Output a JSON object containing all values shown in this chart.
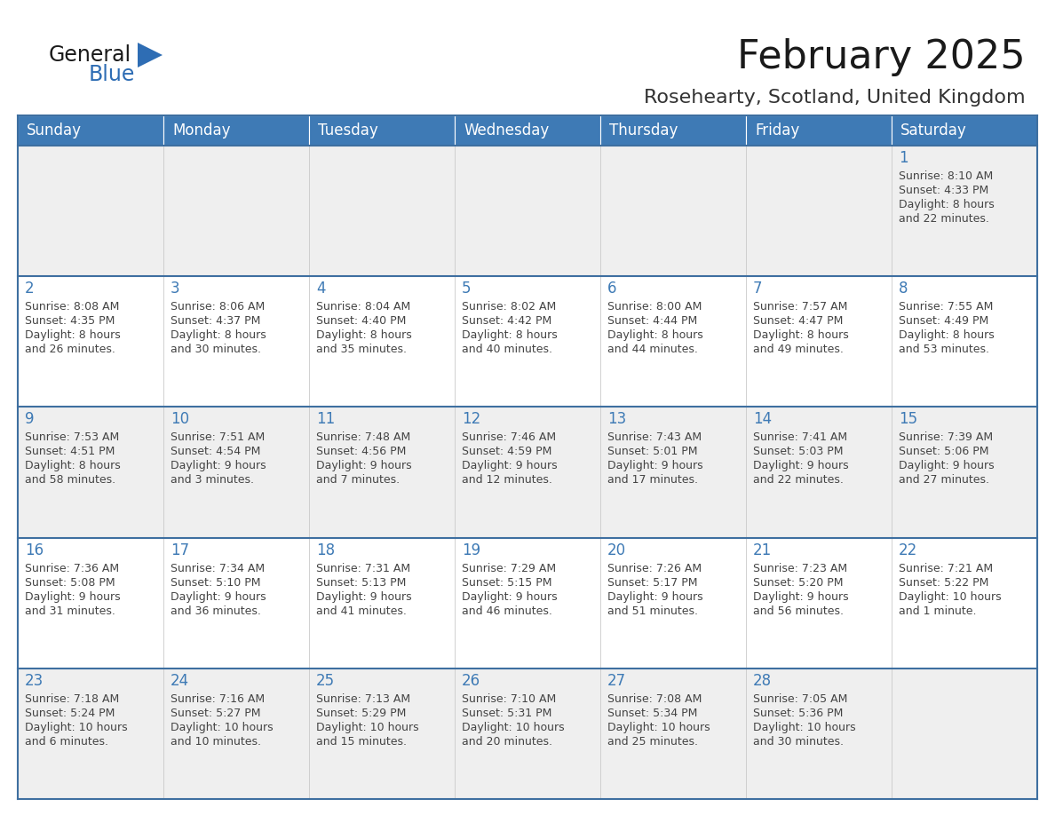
{
  "title": "February 2025",
  "subtitle": "Rosehearty, Scotland, United Kingdom",
  "days_of_week": [
    "Sunday",
    "Monday",
    "Tuesday",
    "Wednesday",
    "Thursday",
    "Friday",
    "Saturday"
  ],
  "header_bg": "#3e7ab5",
  "header_text": "#ffffff",
  "row_bg": [
    "#efefef",
    "#ffffff",
    "#efefef",
    "#ffffff",
    "#efefef"
  ],
  "border_color": "#3e6fa0",
  "day_num_color": "#3e7ab5",
  "cell_text_color": "#444444",
  "title_color": "#1a1a1a",
  "subtitle_color": "#333333",
  "logo_general_color": "#1a1a1a",
  "logo_blue_color": "#2e6db4",
  "calendar_data": [
    [
      {
        "day": null,
        "lines": []
      },
      {
        "day": null,
        "lines": []
      },
      {
        "day": null,
        "lines": []
      },
      {
        "day": null,
        "lines": []
      },
      {
        "day": null,
        "lines": []
      },
      {
        "day": null,
        "lines": []
      },
      {
        "day": 1,
        "lines": [
          "Sunrise: 8:10 AM",
          "Sunset: 4:33 PM",
          "Daylight: 8 hours",
          "and 22 minutes."
        ]
      }
    ],
    [
      {
        "day": 2,
        "lines": [
          "Sunrise: 8:08 AM",
          "Sunset: 4:35 PM",
          "Daylight: 8 hours",
          "and 26 minutes."
        ]
      },
      {
        "day": 3,
        "lines": [
          "Sunrise: 8:06 AM",
          "Sunset: 4:37 PM",
          "Daylight: 8 hours",
          "and 30 minutes."
        ]
      },
      {
        "day": 4,
        "lines": [
          "Sunrise: 8:04 AM",
          "Sunset: 4:40 PM",
          "Daylight: 8 hours",
          "and 35 minutes."
        ]
      },
      {
        "day": 5,
        "lines": [
          "Sunrise: 8:02 AM",
          "Sunset: 4:42 PM",
          "Daylight: 8 hours",
          "and 40 minutes."
        ]
      },
      {
        "day": 6,
        "lines": [
          "Sunrise: 8:00 AM",
          "Sunset: 4:44 PM",
          "Daylight: 8 hours",
          "and 44 minutes."
        ]
      },
      {
        "day": 7,
        "lines": [
          "Sunrise: 7:57 AM",
          "Sunset: 4:47 PM",
          "Daylight: 8 hours",
          "and 49 minutes."
        ]
      },
      {
        "day": 8,
        "lines": [
          "Sunrise: 7:55 AM",
          "Sunset: 4:49 PM",
          "Daylight: 8 hours",
          "and 53 minutes."
        ]
      }
    ],
    [
      {
        "day": 9,
        "lines": [
          "Sunrise: 7:53 AM",
          "Sunset: 4:51 PM",
          "Daylight: 8 hours",
          "and 58 minutes."
        ]
      },
      {
        "day": 10,
        "lines": [
          "Sunrise: 7:51 AM",
          "Sunset: 4:54 PM",
          "Daylight: 9 hours",
          "and 3 minutes."
        ]
      },
      {
        "day": 11,
        "lines": [
          "Sunrise: 7:48 AM",
          "Sunset: 4:56 PM",
          "Daylight: 9 hours",
          "and 7 minutes."
        ]
      },
      {
        "day": 12,
        "lines": [
          "Sunrise: 7:46 AM",
          "Sunset: 4:59 PM",
          "Daylight: 9 hours",
          "and 12 minutes."
        ]
      },
      {
        "day": 13,
        "lines": [
          "Sunrise: 7:43 AM",
          "Sunset: 5:01 PM",
          "Daylight: 9 hours",
          "and 17 minutes."
        ]
      },
      {
        "day": 14,
        "lines": [
          "Sunrise: 7:41 AM",
          "Sunset: 5:03 PM",
          "Daylight: 9 hours",
          "and 22 minutes."
        ]
      },
      {
        "day": 15,
        "lines": [
          "Sunrise: 7:39 AM",
          "Sunset: 5:06 PM",
          "Daylight: 9 hours",
          "and 27 minutes."
        ]
      }
    ],
    [
      {
        "day": 16,
        "lines": [
          "Sunrise: 7:36 AM",
          "Sunset: 5:08 PM",
          "Daylight: 9 hours",
          "and 31 minutes."
        ]
      },
      {
        "day": 17,
        "lines": [
          "Sunrise: 7:34 AM",
          "Sunset: 5:10 PM",
          "Daylight: 9 hours",
          "and 36 minutes."
        ]
      },
      {
        "day": 18,
        "lines": [
          "Sunrise: 7:31 AM",
          "Sunset: 5:13 PM",
          "Daylight: 9 hours",
          "and 41 minutes."
        ]
      },
      {
        "day": 19,
        "lines": [
          "Sunrise: 7:29 AM",
          "Sunset: 5:15 PM",
          "Daylight: 9 hours",
          "and 46 minutes."
        ]
      },
      {
        "day": 20,
        "lines": [
          "Sunrise: 7:26 AM",
          "Sunset: 5:17 PM",
          "Daylight: 9 hours",
          "and 51 minutes."
        ]
      },
      {
        "day": 21,
        "lines": [
          "Sunrise: 7:23 AM",
          "Sunset: 5:20 PM",
          "Daylight: 9 hours",
          "and 56 minutes."
        ]
      },
      {
        "day": 22,
        "lines": [
          "Sunrise: 7:21 AM",
          "Sunset: 5:22 PM",
          "Daylight: 10 hours",
          "and 1 minute."
        ]
      }
    ],
    [
      {
        "day": 23,
        "lines": [
          "Sunrise: 7:18 AM",
          "Sunset: 5:24 PM",
          "Daylight: 10 hours",
          "and 6 minutes."
        ]
      },
      {
        "day": 24,
        "lines": [
          "Sunrise: 7:16 AM",
          "Sunset: 5:27 PM",
          "Daylight: 10 hours",
          "and 10 minutes."
        ]
      },
      {
        "day": 25,
        "lines": [
          "Sunrise: 7:13 AM",
          "Sunset: 5:29 PM",
          "Daylight: 10 hours",
          "and 15 minutes."
        ]
      },
      {
        "day": 26,
        "lines": [
          "Sunrise: 7:10 AM",
          "Sunset: 5:31 PM",
          "Daylight: 10 hours",
          "and 20 minutes."
        ]
      },
      {
        "day": 27,
        "lines": [
          "Sunrise: 7:08 AM",
          "Sunset: 5:34 PM",
          "Daylight: 10 hours",
          "and 25 minutes."
        ]
      },
      {
        "day": 28,
        "lines": [
          "Sunrise: 7:05 AM",
          "Sunset: 5:36 PM",
          "Daylight: 10 hours",
          "and 30 minutes."
        ]
      },
      {
        "day": null,
        "lines": []
      }
    ]
  ]
}
